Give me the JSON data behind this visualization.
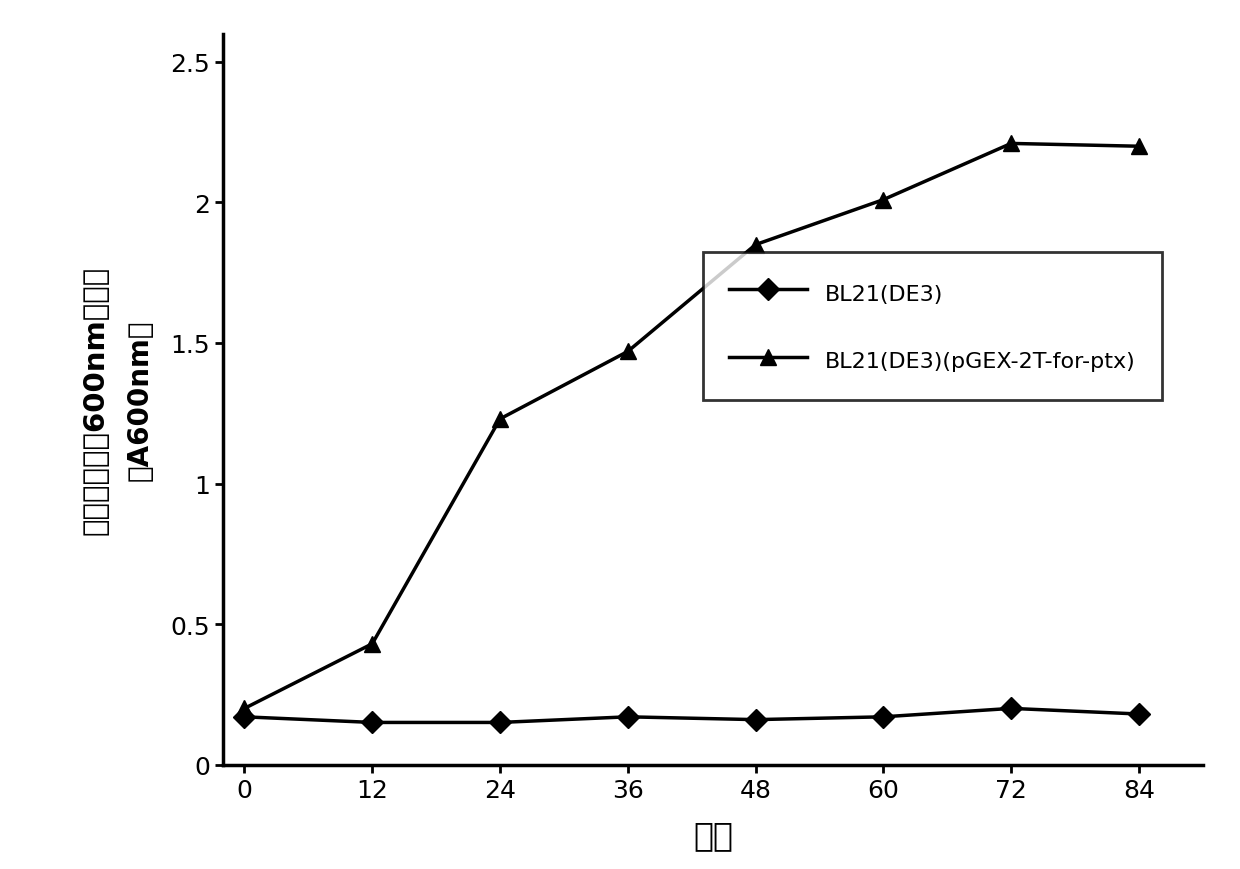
{
  "x": [
    0,
    12,
    24,
    36,
    48,
    60,
    72,
    84
  ],
  "series1_y": [
    0.17,
    0.15,
    0.15,
    0.17,
    0.16,
    0.17,
    0.2,
    0.18
  ],
  "series2_y": [
    0.2,
    0.43,
    1.23,
    1.47,
    1.85,
    2.01,
    2.21,
    2.2
  ],
  "series1_label": "BL21(DE3)",
  "series2_label": "BL21(DE3)(pGEX-2T-for-ptx)",
  "xlabel": "小时",
  "ylabel_main": "紫外吸收波长600nm吸收值",
  "ylabel_sub": "（A600nm）",
  "xlim": [
    -2,
    90
  ],
  "ylim": [
    0,
    2.6
  ],
  "yticks": [
    0,
    0.5,
    1,
    1.5,
    2,
    2.5
  ],
  "xticks": [
    0,
    12,
    24,
    36,
    48,
    60,
    72,
    84
  ],
  "line_color": "#000000",
  "bg_color": "#ffffff",
  "legend_fontsize": 16,
  "tick_fontsize": 18,
  "label_fontsize": 22
}
